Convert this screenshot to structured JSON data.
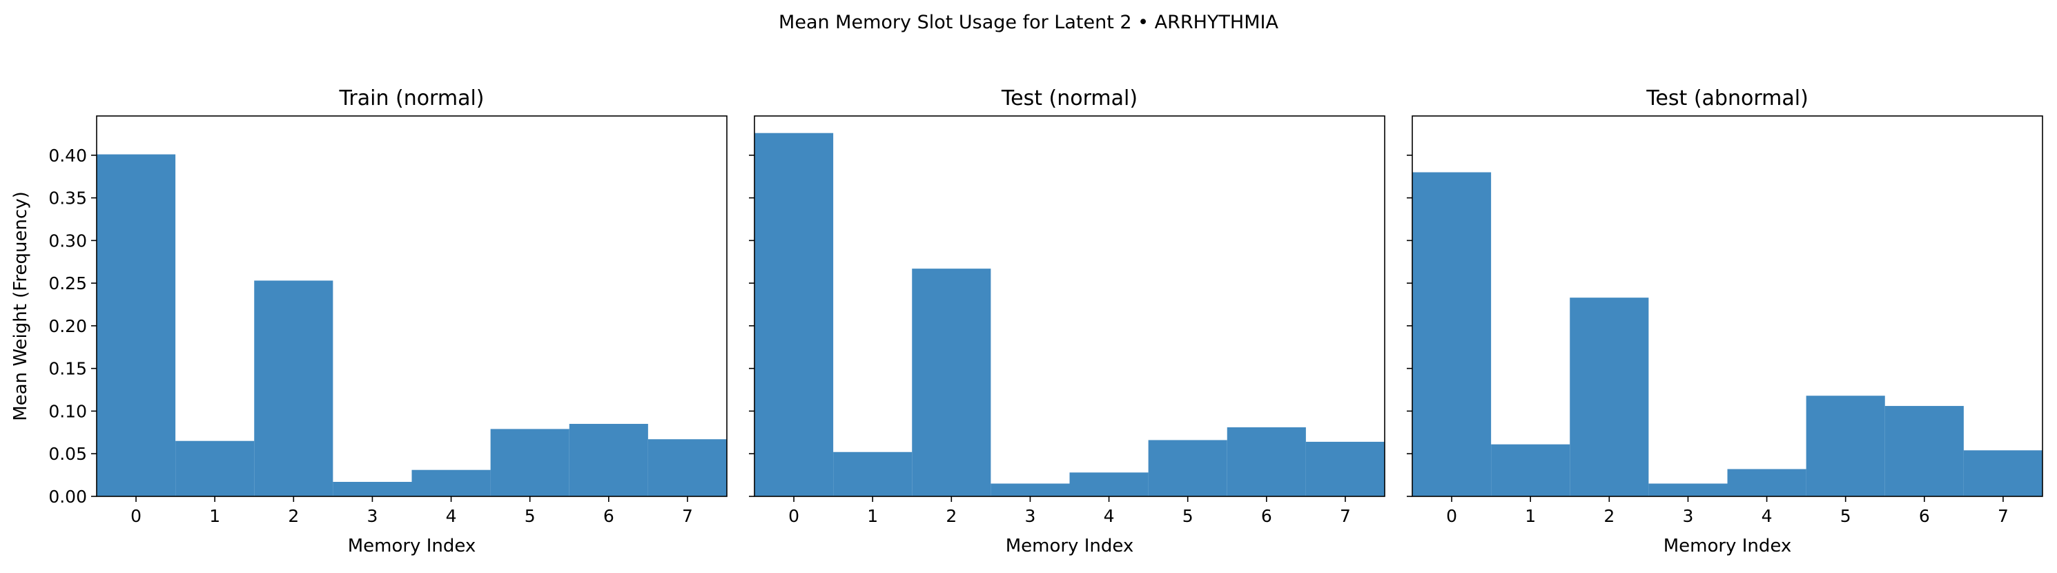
{
  "figure": {
    "suptitle": "Mean Memory Slot Usage for Latent 2 • ARRHYTHMIA",
    "bar_color": "#4189c0"
  },
  "chart_data": [
    {
      "type": "bar",
      "title": "Train (normal)",
      "xlabel": "Memory Index",
      "ylabel": "Mean Weight (Frequency)",
      "categories": [
        "0",
        "1",
        "2",
        "3",
        "4",
        "5",
        "6",
        "7"
      ],
      "values": [
        0.401,
        0.065,
        0.253,
        0.017,
        0.031,
        0.079,
        0.085,
        0.067
      ],
      "ylim": [
        0,
        0.446
      ],
      "yticks": [
        "0.00",
        "0.05",
        "0.10",
        "0.15",
        "0.20",
        "0.25",
        "0.30",
        "0.35",
        "0.40"
      ],
      "grid": false
    },
    {
      "type": "bar",
      "title": "Test (normal)",
      "xlabel": "Memory Index",
      "ylabel": "",
      "categories": [
        "0",
        "1",
        "2",
        "3",
        "4",
        "5",
        "6",
        "7"
      ],
      "values": [
        0.426,
        0.052,
        0.267,
        0.015,
        0.028,
        0.066,
        0.081,
        0.064
      ],
      "ylim": [
        0,
        0.446
      ],
      "yticks": [
        "0.00",
        "0.05",
        "0.10",
        "0.15",
        "0.20",
        "0.25",
        "0.30",
        "0.35",
        "0.40"
      ],
      "grid": false
    },
    {
      "type": "bar",
      "title": "Test (abnormal)",
      "xlabel": "Memory Index",
      "ylabel": "",
      "categories": [
        "0",
        "1",
        "2",
        "3",
        "4",
        "5",
        "6",
        "7"
      ],
      "values": [
        0.38,
        0.061,
        0.233,
        0.015,
        0.032,
        0.118,
        0.106,
        0.054
      ],
      "ylim": [
        0,
        0.446
      ],
      "yticks": [
        "0.00",
        "0.05",
        "0.10",
        "0.15",
        "0.20",
        "0.25",
        "0.30",
        "0.35",
        "0.40"
      ],
      "grid": false
    }
  ]
}
